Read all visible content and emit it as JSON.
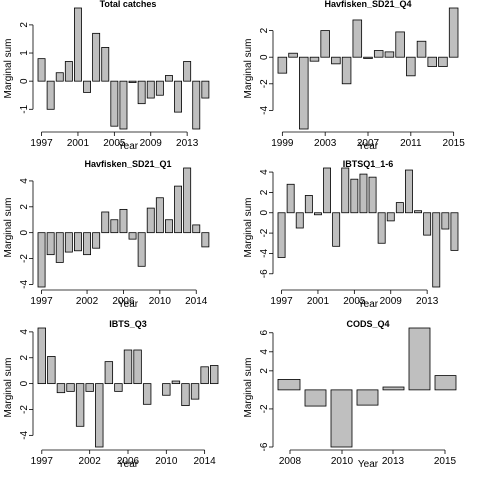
{
  "chart_data": [
    {
      "type": "bar",
      "title": "Total catches",
      "xlabel": "Year",
      "ylabel": "Marginal sum",
      "x": [
        1997,
        1998,
        1999,
        2000,
        2001,
        2002,
        2003,
        2004,
        2005,
        2006,
        2007,
        2008,
        2009,
        2010,
        2011,
        2012,
        2013,
        2014,
        2015,
        2016
      ],
      "values": [
        0.8,
        -1.0,
        0.3,
        0.7,
        2.6,
        -0.4,
        1.7,
        1.2,
        -1.6,
        -1.7,
        -0.05,
        -0.8,
        -0.6,
        -0.5,
        0.2,
        -1.1,
        0.7,
        -1.7,
        -0.6,
        0
      ],
      "xticks": [
        1997,
        2001,
        2005,
        2009,
        2013
      ],
      "yticks": [
        -1,
        0,
        1,
        2
      ],
      "ylim": [
        -1.7,
        2.6
      ]
    },
    {
      "type": "bar",
      "title": "Havfisken_SD21_Q4",
      "xlabel": "Year",
      "ylabel": "Marginal sum",
      "x": [
        1999,
        2000,
        2001,
        2002,
        2003,
        2004,
        2005,
        2006,
        2007,
        2008,
        2009,
        2010,
        2011,
        2012,
        2013,
        2014,
        2015
      ],
      "values": [
        -1.2,
        0.3,
        -5.4,
        -0.3,
        2.0,
        -0.5,
        -2.0,
        2.8,
        -0.1,
        0.5,
        0.4,
        1.9,
        -1.4,
        1.2,
        -0.7,
        -0.7,
        3.7
      ],
      "xticks": [
        1999,
        2003,
        2007,
        2011,
        2015
      ],
      "yticks": [
        -4,
        -2,
        0,
        2
      ],
      "ylim": [
        -5.4,
        3.7
      ]
    },
    {
      "type": "bar",
      "title": "Havfisken_SD21_Q1",
      "xlabel": "Year",
      "ylabel": "Marginal sum",
      "x": [
        1997,
        1998,
        1999,
        2000,
        2001,
        2002,
        2003,
        2004,
        2005,
        2006,
        2007,
        2008,
        2009,
        2010,
        2011,
        2012,
        2013,
        2014,
        2015,
        2016
      ],
      "values": [
        -4.2,
        -1.7,
        -2.3,
        -1.5,
        -1.4,
        -1.7,
        -1.2,
        1.6,
        1.0,
        1.8,
        -0.5,
        -2.6,
        1.9,
        2.7,
        1.0,
        3.6,
        5.0,
        0.6,
        -1.1,
        0
      ],
      "xticks": [
        1997,
        2002,
        2006,
        2010,
        2014
      ],
      "yticks": [
        -4,
        -2,
        0,
        2,
        4
      ],
      "ylim": [
        -4.2,
        5.0
      ]
    },
    {
      "type": "bar",
      "title": "IBTSQ1_1-6",
      "xlabel": "Year",
      "ylabel": "Marginal sum",
      "x": [
        1997,
        1998,
        1999,
        2000,
        2001,
        2002,
        2003,
        2004,
        2005,
        2006,
        2007,
        2008,
        2009,
        2010,
        2011,
        2012,
        2013,
        2014,
        2015,
        2016
      ],
      "values": [
        -4.4,
        2.8,
        -1.5,
        1.7,
        -0.2,
        4.4,
        -3.3,
        4.4,
        3.3,
        3.8,
        3.5,
        -3.0,
        -0.8,
        1.0,
        4.2,
        0.2,
        -2.2,
        -7.3,
        -1.6,
        -3.7
      ],
      "xticks": [
        1997,
        2001,
        2005,
        2009,
        2013
      ],
      "yticks": [
        -6,
        -4,
        -2,
        0,
        2,
        4
      ],
      "ylim": [
        -7.3,
        4.4
      ]
    },
    {
      "type": "bar",
      "title": "IBTS_Q3",
      "xlabel": "Year",
      "ylabel": "Marginal sum",
      "x": [
        1997,
        1998,
        1999,
        2000,
        2001,
        2002,
        2003,
        2004,
        2005,
        2006,
        2007,
        2008,
        2009,
        2010,
        2011,
        2012,
        2013,
        2014,
        2015
      ],
      "values": [
        4.3,
        2.1,
        -0.7,
        -0.6,
        -3.3,
        -0.6,
        -4.9,
        1.7,
        -0.6,
        2.6,
        2.6,
        -1.6,
        0,
        -0.9,
        0.2,
        -1.7,
        -1.2,
        1.3,
        1.4
      ],
      "xticks": [
        1997,
        2002,
        2006,
        2010,
        2014
      ],
      "yticks": [
        -4,
        -2,
        0,
        2,
        4
      ],
      "ylim": [
        -4.9,
        4.3
      ]
    },
    {
      "type": "bar",
      "title": "CODS_Q4",
      "xlabel": "Year",
      "ylabel": "Marginal sum",
      "x": [
        2008,
        2009,
        2010,
        2011,
        2012,
        2013,
        2014,
        2015
      ],
      "categories": [
        "2008",
        "2009",
        "2010",
        "2011",
        "2012",
        "2013",
        "2014",
        "2015"
      ],
      "values": [
        1.1,
        -1.7,
        -6.0,
        -1.6,
        0.3,
        6.5,
        1.5,
        0
      ],
      "xticks": [
        2008,
        2010,
        2013,
        2015
      ],
      "yticks": [
        -6,
        -2,
        2,
        4,
        6
      ],
      "ylim": [
        -6.0,
        6.5
      ]
    }
  ]
}
